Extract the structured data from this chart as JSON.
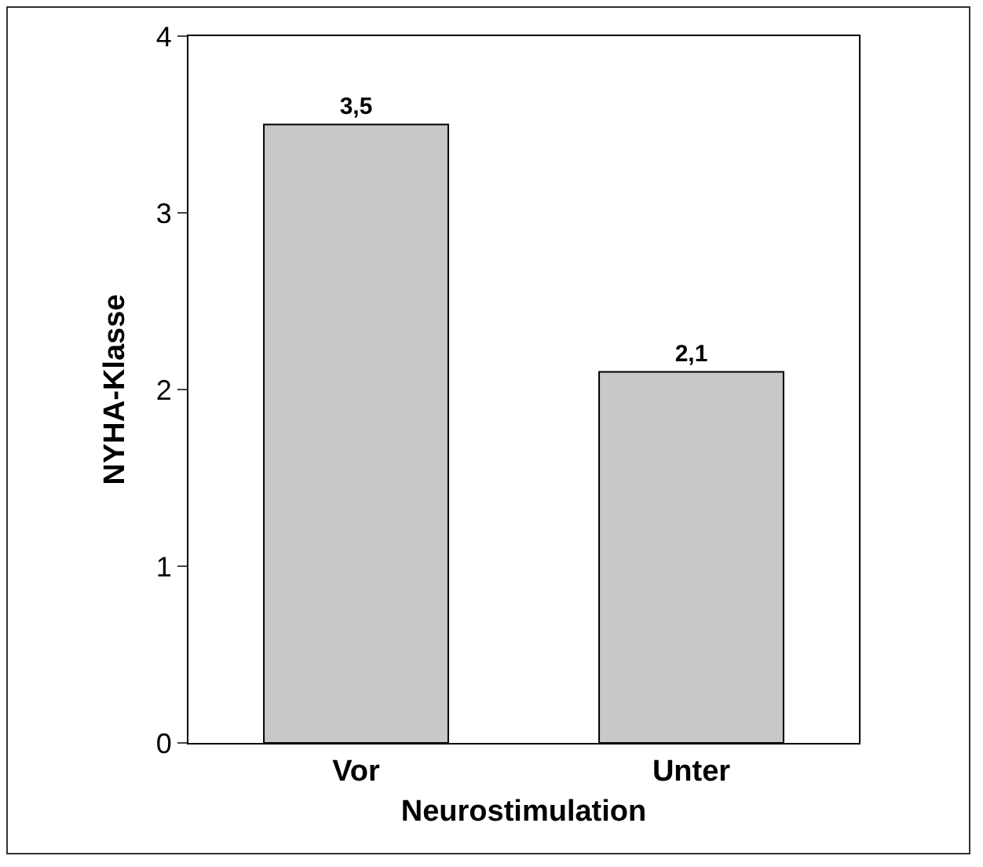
{
  "chart_data": {
    "type": "bar",
    "xlabel": "Neurostimulation",
    "ylabel": "NYHA-Klasse",
    "categories": [
      "Vor",
      "Unter"
    ],
    "values": [
      3.5,
      2.1
    ],
    "value_labels": [
      "3,5",
      "2,1"
    ],
    "color": "#c8c8c8",
    "ylim": [
      0,
      4
    ],
    "yticks": [
      0,
      1,
      2,
      3,
      4
    ],
    "grid": false
  }
}
